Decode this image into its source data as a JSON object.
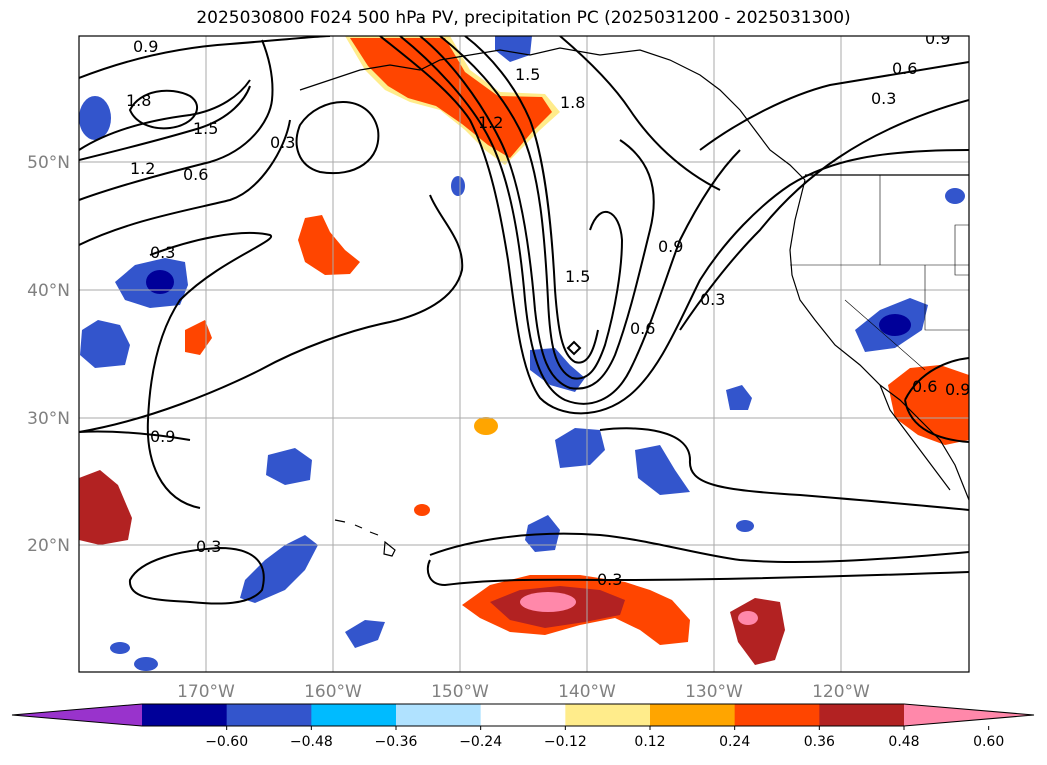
{
  "title": "2025030800 F024 500 hPa PV, precipitation PC (2025031200 - 2025031300)",
  "map": {
    "lon_ticks": [
      "170°W",
      "160°W",
      "150°W",
      "140°W",
      "130°W",
      "120°W"
    ],
    "lat_ticks": [
      "50°N",
      "40°N",
      "30°N",
      "20°N"
    ],
    "contour_labels": [
      "0.9",
      "1.8",
      "1.5",
      "1.2",
      "0.6",
      "0.3",
      "0.3",
      "1.2",
      "1.5",
      "1.8",
      "0.9",
      "0.6",
      "0.3",
      "1.5",
      "0.9",
      "0.3",
      "0.6",
      "0.6",
      "0.9",
      "0.3",
      "0.3",
      "0.9"
    ],
    "colors": {
      "neg_060": "#9933cc",
      "neg_048": "#000099",
      "neg_036": "#3355cc",
      "neg_024": "#00bbff",
      "neg_012": "#b0e2ff",
      "zero": "#ffffff",
      "pos_012": "#ffec8b",
      "pos_024": "#ffa500",
      "pos_036": "#ff4500",
      "pos_048": "#b22222",
      "pos_060": "#ff88aa"
    }
  },
  "colorbar": {
    "labels": [
      "−0.60",
      "−0.48",
      "−0.36",
      "−0.24",
      "−0.12",
      "0.12",
      "0.24",
      "0.36",
      "0.48",
      "0.60"
    ],
    "colors": [
      "#9933cc",
      "#000099",
      "#3355cc",
      "#00bbff",
      "#b0e2ff",
      "#ffffff",
      "#ffec8b",
      "#ffa500",
      "#ff4500",
      "#b22222",
      "#ff88aa"
    ]
  }
}
